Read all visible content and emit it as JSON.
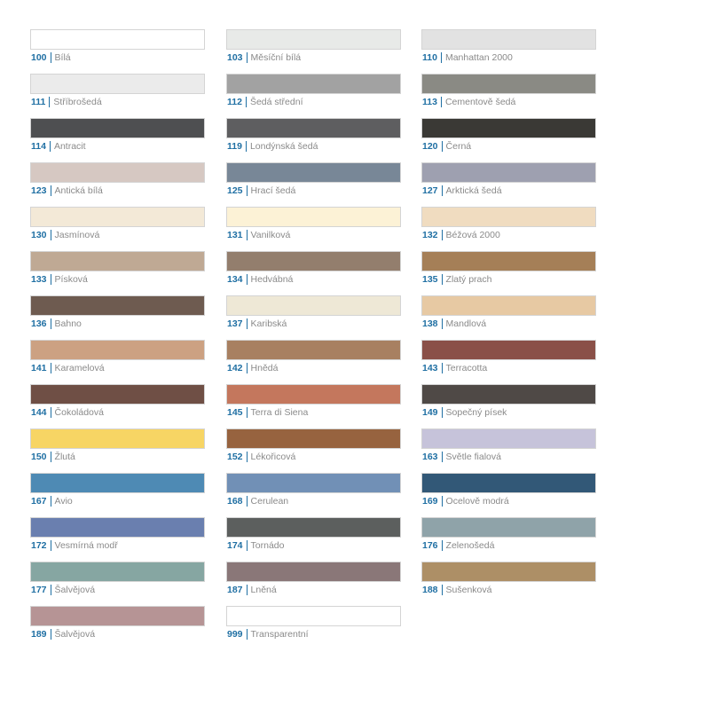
{
  "swatches": [
    {
      "code": "100",
      "name": "Bílá",
      "color": "#ffffff"
    },
    {
      "code": "103",
      "name": "Měsíční bílá",
      "color": "#e8eae8"
    },
    {
      "code": "110",
      "name": "Manhattan 2000",
      "color": "#e2e2e2"
    },
    {
      "code": "111",
      "name": "Stříbrošedá",
      "color": "#ebebeb"
    },
    {
      "code": "112",
      "name": "Šedá střední",
      "color": "#a2a2a2"
    },
    {
      "code": "113",
      "name": "Cementově šedá",
      "color": "#8a8a84"
    },
    {
      "code": "114",
      "name": "Antracit",
      "color": "#4e4f51"
    },
    {
      "code": "119",
      "name": "Londýnská šedá",
      "color": "#5e5e60"
    },
    {
      "code": "120",
      "name": "Černá",
      "color": "#3a3935"
    },
    {
      "code": "123",
      "name": "Antická bílá",
      "color": "#d6c8c2"
    },
    {
      "code": "125",
      "name": "Hrací šedá",
      "color": "#788797"
    },
    {
      "code": "127",
      "name": "Arktická šedá",
      "color": "#9ea0b0"
    },
    {
      "code": "130",
      "name": "Jasmínová",
      "color": "#f3e9d7"
    },
    {
      "code": "131",
      "name": "Vanilková",
      "color": "#fcf2d6"
    },
    {
      "code": "132",
      "name": "Béžová 2000",
      "color": "#f0dcc0"
    },
    {
      "code": "133",
      "name": "Písková",
      "color": "#bfa994"
    },
    {
      "code": "134",
      "name": "Hedvábná",
      "color": "#937e6d"
    },
    {
      "code": "135",
      "name": "Zlatý prach",
      "color": "#a57f57"
    },
    {
      "code": "136",
      "name": "Bahno",
      "color": "#6e5b50"
    },
    {
      "code": "137",
      "name": "Karibská",
      "color": "#eee8d6"
    },
    {
      "code": "138",
      "name": "Mandlová",
      "color": "#e7c9a3"
    },
    {
      "code": "141",
      "name": "Karamelová",
      "color": "#cca182"
    },
    {
      "code": "142",
      "name": "Hnědá",
      "color": "#a88061"
    },
    {
      "code": "143",
      "name": "Terracotta",
      "color": "#8a5048"
    },
    {
      "code": "144",
      "name": "Čokoládová",
      "color": "#6f4f45"
    },
    {
      "code": "145",
      "name": "Terra di Siena",
      "color": "#c4775d"
    },
    {
      "code": "149",
      "name": "Sopečný písek",
      "color": "#4f4946"
    },
    {
      "code": "150",
      "name": "Žlutá",
      "color": "#f7d564"
    },
    {
      "code": "152",
      "name": "Lékořicová",
      "color": "#97633f"
    },
    {
      "code": "163",
      "name": "Světle fialová",
      "color": "#c6c3da"
    },
    {
      "code": "167",
      "name": "Avio",
      "color": "#4e8ab4"
    },
    {
      "code": "168",
      "name": "Cerulean",
      "color": "#7190b6"
    },
    {
      "code": "169",
      "name": "Ocelově modrá",
      "color": "#325877"
    },
    {
      "code": "172",
      "name": "Vesmírná modř",
      "color": "#6a7faf"
    },
    {
      "code": "174",
      "name": "Tornádo",
      "color": "#5c5f5e"
    },
    {
      "code": "176",
      "name": "Zelenošedá",
      "color": "#8fa3a9"
    },
    {
      "code": "177",
      "name": "Šalvějová",
      "color": "#86a6a2"
    },
    {
      "code": "187",
      "name": "Lněná",
      "color": "#8a7778"
    },
    {
      "code": "188",
      "name": "Sušenková",
      "color": "#ad8f66"
    },
    {
      "code": "189",
      "name": "Šalvějová",
      "color": "#b69495"
    },
    {
      "code": "999",
      "name": "Transparentní",
      "color": "#ffffff"
    }
  ]
}
